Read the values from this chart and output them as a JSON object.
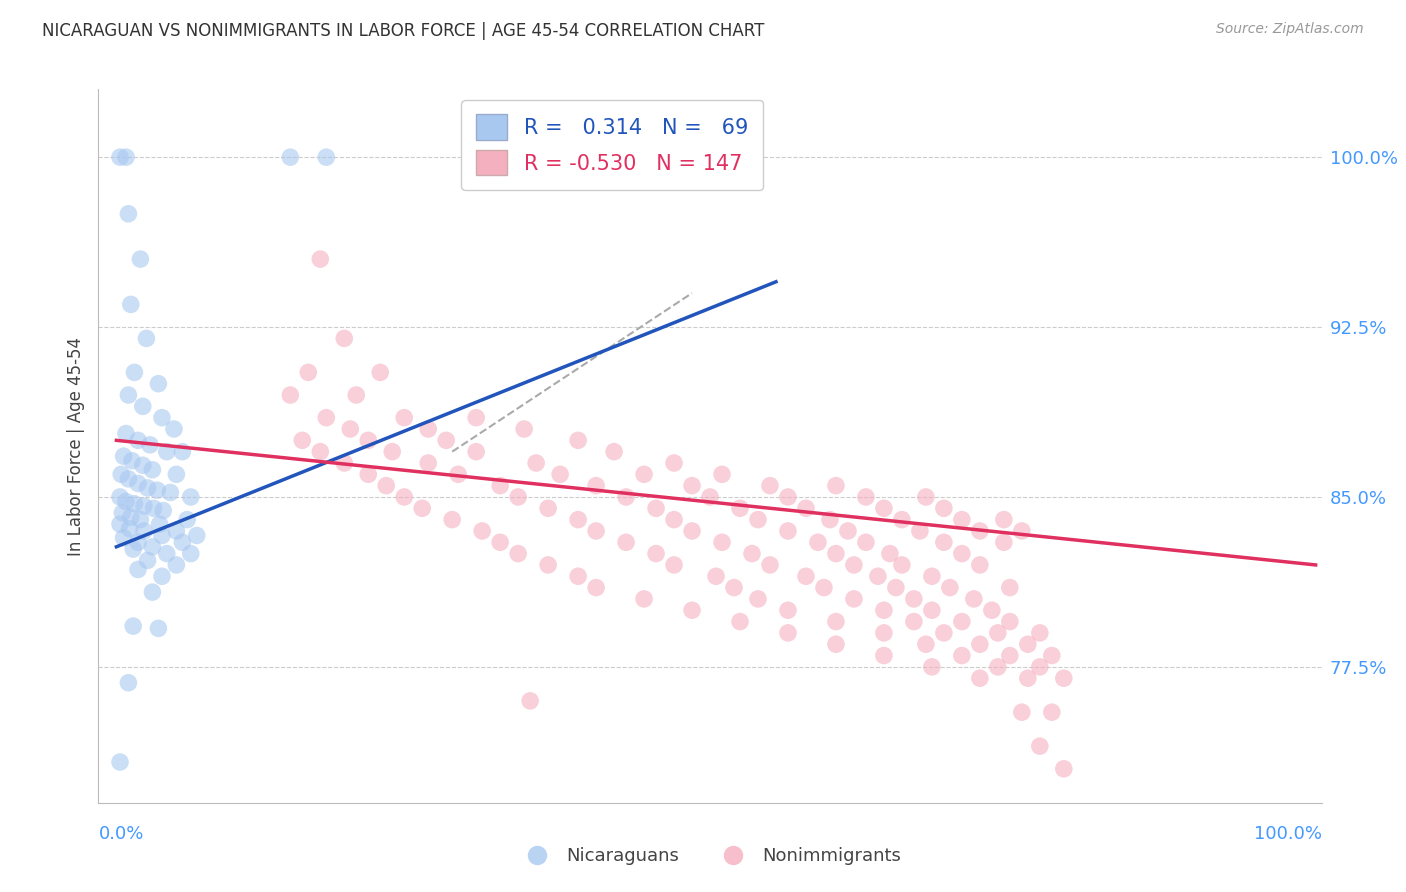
{
  "title": "NICARAGUAN VS NONIMMIGRANTS IN LABOR FORCE | AGE 45-54 CORRELATION CHART",
  "source": "Source: ZipAtlas.com",
  "ylabel": "In Labor Force | Age 45-54",
  "yticks": [
    77.5,
    85.0,
    92.5,
    100.0
  ],
  "ytick_labels": [
    "77.5%",
    "85.0%",
    "92.5%",
    "100.0%"
  ],
  "legend_r1": "R =   0.314   N =   69",
  "legend_r2": "R = -0.530   N = 147",
  "blue_scatter_color": "#a8c8f0",
  "pink_scatter_color": "#f5b0c0",
  "blue_line_color": "#2255bb",
  "pink_line_color": "#e03060",
  "grid_color": "#cccccc",
  "blue_points": [
    [
      0.3,
      100.0
    ],
    [
      0.8,
      100.0
    ],
    [
      14.5,
      100.0
    ],
    [
      17.5,
      100.0
    ],
    [
      1.0,
      97.5
    ],
    [
      2.0,
      95.5
    ],
    [
      1.2,
      93.5
    ],
    [
      2.5,
      92.0
    ],
    [
      1.5,
      90.5
    ],
    [
      3.5,
      90.0
    ],
    [
      1.0,
      89.5
    ],
    [
      2.2,
      89.0
    ],
    [
      3.8,
      88.5
    ],
    [
      4.8,
      88.0
    ],
    [
      0.8,
      87.8
    ],
    [
      1.8,
      87.5
    ],
    [
      2.8,
      87.3
    ],
    [
      4.2,
      87.0
    ],
    [
      5.5,
      87.0
    ],
    [
      0.6,
      86.8
    ],
    [
      1.3,
      86.6
    ],
    [
      2.2,
      86.4
    ],
    [
      3.0,
      86.2
    ],
    [
      5.0,
      86.0
    ],
    [
      0.4,
      86.0
    ],
    [
      1.0,
      85.8
    ],
    [
      1.8,
      85.6
    ],
    [
      2.6,
      85.4
    ],
    [
      3.4,
      85.3
    ],
    [
      4.5,
      85.2
    ],
    [
      6.2,
      85.0
    ],
    [
      0.3,
      85.0
    ],
    [
      0.8,
      84.8
    ],
    [
      1.5,
      84.7
    ],
    [
      2.3,
      84.6
    ],
    [
      3.1,
      84.5
    ],
    [
      3.9,
      84.4
    ],
    [
      5.9,
      84.0
    ],
    [
      0.5,
      84.3
    ],
    [
      1.2,
      84.1
    ],
    [
      2.0,
      84.0
    ],
    [
      3.6,
      83.8
    ],
    [
      5.0,
      83.5
    ],
    [
      6.7,
      83.3
    ],
    [
      0.3,
      83.8
    ],
    [
      1.1,
      83.6
    ],
    [
      2.3,
      83.5
    ],
    [
      3.8,
      83.3
    ],
    [
      5.5,
      83.0
    ],
    [
      0.6,
      83.2
    ],
    [
      1.8,
      83.0
    ],
    [
      3.0,
      82.8
    ],
    [
      6.2,
      82.5
    ],
    [
      1.4,
      82.7
    ],
    [
      4.2,
      82.5
    ],
    [
      2.6,
      82.2
    ],
    [
      5.0,
      82.0
    ],
    [
      1.8,
      81.8
    ],
    [
      3.8,
      81.5
    ],
    [
      3.0,
      80.8
    ],
    [
      1.4,
      79.3
    ],
    [
      3.5,
      79.2
    ],
    [
      1.0,
      76.8
    ],
    [
      0.3,
      73.3
    ]
  ],
  "pink_points": [
    [
      17.0,
      95.5
    ],
    [
      19.0,
      92.0
    ],
    [
      16.0,
      90.5
    ],
    [
      22.0,
      90.5
    ],
    [
      14.5,
      89.5
    ],
    [
      20.0,
      89.5
    ],
    [
      17.5,
      88.5
    ],
    [
      24.0,
      88.5
    ],
    [
      30.0,
      88.5
    ],
    [
      19.5,
      88.0
    ],
    [
      26.0,
      88.0
    ],
    [
      34.0,
      88.0
    ],
    [
      15.5,
      87.5
    ],
    [
      21.0,
      87.5
    ],
    [
      27.5,
      87.5
    ],
    [
      38.5,
      87.5
    ],
    [
      17.0,
      87.0
    ],
    [
      23.0,
      87.0
    ],
    [
      30.0,
      87.0
    ],
    [
      41.5,
      87.0
    ],
    [
      19.0,
      86.5
    ],
    [
      26.0,
      86.5
    ],
    [
      35.0,
      86.5
    ],
    [
      46.5,
      86.5
    ],
    [
      21.0,
      86.0
    ],
    [
      28.5,
      86.0
    ],
    [
      37.0,
      86.0
    ],
    [
      44.0,
      86.0
    ],
    [
      50.5,
      86.0
    ],
    [
      22.5,
      85.5
    ],
    [
      32.0,
      85.5
    ],
    [
      40.0,
      85.5
    ],
    [
      48.0,
      85.5
    ],
    [
      54.5,
      85.5
    ],
    [
      60.0,
      85.5
    ],
    [
      24.0,
      85.0
    ],
    [
      33.5,
      85.0
    ],
    [
      42.5,
      85.0
    ],
    [
      49.5,
      85.0
    ],
    [
      56.0,
      85.0
    ],
    [
      62.5,
      85.0
    ],
    [
      67.5,
      85.0
    ],
    [
      25.5,
      84.5
    ],
    [
      36.0,
      84.5
    ],
    [
      45.0,
      84.5
    ],
    [
      52.0,
      84.5
    ],
    [
      57.5,
      84.5
    ],
    [
      64.0,
      84.5
    ],
    [
      69.0,
      84.5
    ],
    [
      28.0,
      84.0
    ],
    [
      38.5,
      84.0
    ],
    [
      46.5,
      84.0
    ],
    [
      53.5,
      84.0
    ],
    [
      59.5,
      84.0
    ],
    [
      65.5,
      84.0
    ],
    [
      70.5,
      84.0
    ],
    [
      74.0,
      84.0
    ],
    [
      30.5,
      83.5
    ],
    [
      40.0,
      83.5
    ],
    [
      48.0,
      83.5
    ],
    [
      56.0,
      83.5
    ],
    [
      61.0,
      83.5
    ],
    [
      67.0,
      83.5
    ],
    [
      72.0,
      83.5
    ],
    [
      75.5,
      83.5
    ],
    [
      32.0,
      83.0
    ],
    [
      42.5,
      83.0
    ],
    [
      50.5,
      83.0
    ],
    [
      58.5,
      83.0
    ],
    [
      62.5,
      83.0
    ],
    [
      69.0,
      83.0
    ],
    [
      74.0,
      83.0
    ],
    [
      33.5,
      82.5
    ],
    [
      45.0,
      82.5
    ],
    [
      53.0,
      82.5
    ],
    [
      60.0,
      82.5
    ],
    [
      64.5,
      82.5
    ],
    [
      70.5,
      82.5
    ],
    [
      36.0,
      82.0
    ],
    [
      46.5,
      82.0
    ],
    [
      54.5,
      82.0
    ],
    [
      61.5,
      82.0
    ],
    [
      65.5,
      82.0
    ],
    [
      72.0,
      82.0
    ],
    [
      38.5,
      81.5
    ],
    [
      50.0,
      81.5
    ],
    [
      57.5,
      81.5
    ],
    [
      63.5,
      81.5
    ],
    [
      68.0,
      81.5
    ],
    [
      40.0,
      81.0
    ],
    [
      51.5,
      81.0
    ],
    [
      59.0,
      81.0
    ],
    [
      65.0,
      81.0
    ],
    [
      69.5,
      81.0
    ],
    [
      74.5,
      81.0
    ],
    [
      44.0,
      80.5
    ],
    [
      53.5,
      80.5
    ],
    [
      61.5,
      80.5
    ],
    [
      66.5,
      80.5
    ],
    [
      71.5,
      80.5
    ],
    [
      48.0,
      80.0
    ],
    [
      56.0,
      80.0
    ],
    [
      64.0,
      80.0
    ],
    [
      68.0,
      80.0
    ],
    [
      73.0,
      80.0
    ],
    [
      52.0,
      79.5
    ],
    [
      60.0,
      79.5
    ],
    [
      66.5,
      79.5
    ],
    [
      70.5,
      79.5
    ],
    [
      74.5,
      79.5
    ],
    [
      56.0,
      79.0
    ],
    [
      64.0,
      79.0
    ],
    [
      69.0,
      79.0
    ],
    [
      73.5,
      79.0
    ],
    [
      77.0,
      79.0
    ],
    [
      60.0,
      78.5
    ],
    [
      67.5,
      78.5
    ],
    [
      72.0,
      78.5
    ],
    [
      76.0,
      78.5
    ],
    [
      64.0,
      78.0
    ],
    [
      70.5,
      78.0
    ],
    [
      74.5,
      78.0
    ],
    [
      78.0,
      78.0
    ],
    [
      68.0,
      77.5
    ],
    [
      73.5,
      77.5
    ],
    [
      77.0,
      77.5
    ],
    [
      72.0,
      77.0
    ],
    [
      76.0,
      77.0
    ],
    [
      79.0,
      77.0
    ],
    [
      34.5,
      76.0
    ],
    [
      75.5,
      75.5
    ],
    [
      78.0,
      75.5
    ],
    [
      77.0,
      74.0
    ],
    [
      79.0,
      73.0
    ]
  ],
  "blue_line": {
    "x0": 0.0,
    "x1": 55.0,
    "y0": 82.8,
    "y1": 94.5
  },
  "pink_line": {
    "x0": 0.0,
    "x1": 100.0,
    "y0": 87.5,
    "y1": 82.0
  },
  "dash_line": {
    "x0": 28.0,
    "x1": 48.0,
    "y0": 87.0,
    "y1": 94.0
  },
  "xlim": [
    -1.5,
    100.5
  ],
  "ylim": [
    71.5,
    103.0
  ]
}
